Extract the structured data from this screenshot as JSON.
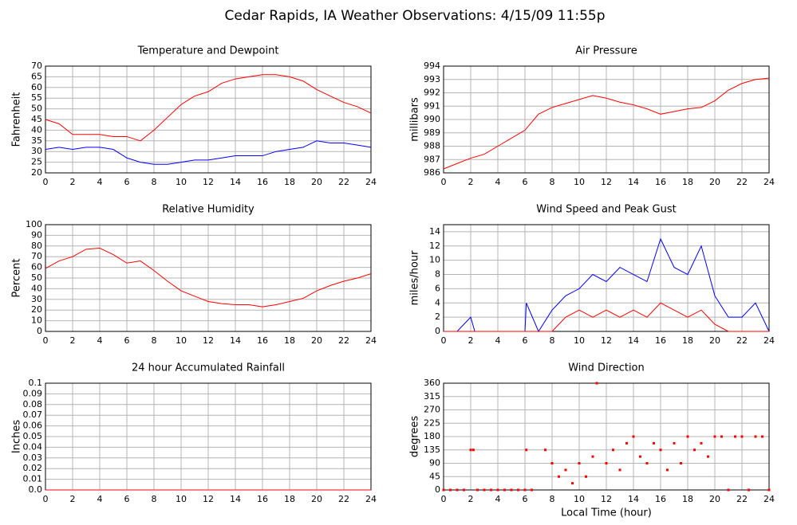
{
  "title": "Cedar Rapids, IA Weather Observations: 4/15/09 11:55p",
  "chart_data": [
    {
      "type": "line",
      "title": "Temperature and Dewpoint",
      "ylabel": "Fahrenheit",
      "x": [
        0,
        1,
        2,
        3,
        4,
        5,
        6,
        7,
        8,
        9,
        10,
        11,
        12,
        13,
        14,
        15,
        16,
        17,
        18,
        19,
        20,
        21,
        22,
        23,
        24
      ],
      "series": [
        {
          "color": "#ff0000",
          "values": [
            45,
            43,
            38,
            38,
            38,
            37,
            37,
            35,
            40,
            46,
            52,
            56,
            58,
            62,
            64,
            65,
            66,
            66,
            65,
            63,
            59,
            56,
            53,
            51,
            48
          ]
        },
        {
          "color": "#0000ff",
          "values": [
            31,
            32,
            31,
            32,
            32,
            31,
            27,
            25,
            24,
            24,
            25,
            26,
            26,
            27,
            28,
            28,
            28,
            30,
            31,
            32,
            35,
            34,
            34,
            33,
            32
          ]
        }
      ],
      "xlim": [
        0,
        24
      ],
      "xticks": [
        0,
        2,
        4,
        6,
        8,
        10,
        12,
        14,
        16,
        18,
        20,
        22,
        24
      ],
      "ylim": [
        20,
        70
      ],
      "yticks": [
        20,
        25,
        30,
        35,
        40,
        45,
        50,
        55,
        60,
        65,
        70
      ],
      "grid": true
    },
    {
      "type": "line",
      "title": "Air Pressure",
      "ylabel": "millibars",
      "x": [
        0,
        1,
        2,
        3,
        4,
        5,
        6,
        7,
        8,
        9,
        10,
        11,
        12,
        13,
        14,
        15,
        16,
        17,
        18,
        19,
        20,
        21,
        22,
        23,
        24
      ],
      "series": [
        {
          "color": "#ff0000",
          "values": [
            986.3,
            986.7,
            987.1,
            987.4,
            988,
            988.6,
            989.2,
            990.4,
            990.9,
            991.2,
            991.5,
            991.8,
            991.6,
            991.3,
            991.1,
            990.8,
            990.4,
            990.6,
            990.8,
            990.9,
            991.4,
            992.2,
            992.7,
            993,
            993.1
          ]
        }
      ],
      "xlim": [
        0,
        24
      ],
      "xticks": [
        0,
        2,
        4,
        6,
        8,
        10,
        12,
        14,
        16,
        18,
        20,
        22,
        24
      ],
      "ylim": [
        986,
        994
      ],
      "yticks": [
        986,
        987,
        988,
        989,
        990,
        991,
        992,
        993,
        994
      ],
      "grid": true
    },
    {
      "type": "line",
      "title": "Relative Humidity",
      "ylabel": "Percent",
      "x": [
        0,
        1,
        2,
        3,
        4,
        5,
        6,
        7,
        8,
        9,
        10,
        11,
        12,
        13,
        14,
        15,
        16,
        17,
        18,
        19,
        20,
        21,
        22,
        23,
        24
      ],
      "series": [
        {
          "color": "#ff0000",
          "values": [
            59,
            66,
            70,
            77,
            78,
            72,
            64,
            66,
            57,
            47,
            38,
            33,
            28,
            26,
            25,
            25,
            23,
            25,
            28,
            31,
            38,
            43,
            47,
            50,
            54
          ]
        }
      ],
      "xlim": [
        0,
        24
      ],
      "xticks": [
        0,
        2,
        4,
        6,
        8,
        10,
        12,
        14,
        16,
        18,
        20,
        22,
        24
      ],
      "ylim": [
        0,
        100
      ],
      "yticks": [
        0,
        10,
        20,
        30,
        40,
        50,
        60,
        70,
        80,
        90,
        100
      ],
      "grid": true
    },
    {
      "type": "line",
      "title": "Wind Speed and Peak Gust",
      "ylabel": "miles/hour",
      "x": [
        0,
        1,
        2,
        2.3,
        3,
        4,
        5,
        6,
        6.1,
        7,
        8,
        9,
        10,
        11,
        12,
        13,
        14,
        15,
        16,
        17,
        18,
        19,
        20,
        21,
        22,
        23,
        24
      ],
      "series": [
        {
          "color": "#0000ff",
          "values": [
            0,
            0,
            2,
            0,
            0,
            0,
            0,
            0,
            4,
            0,
            3,
            5,
            6,
            8,
            7,
            9,
            8,
            7,
            13,
            9,
            8,
            12,
            5,
            2,
            2,
            4,
            0
          ]
        },
        {
          "color": "#ff0000",
          "values": [
            0,
            0,
            0,
            0,
            0,
            0,
            0,
            0,
            0,
            0,
            0,
            2,
            3,
            2,
            3,
            2,
            3,
            2,
            4,
            3,
            2,
            3,
            1,
            0,
            0,
            0,
            0
          ]
        }
      ],
      "xlim": [
        0,
        24
      ],
      "xticks": [
        0,
        2,
        4,
        6,
        8,
        10,
        12,
        14,
        16,
        18,
        20,
        22,
        24
      ],
      "ylim": [
        0,
        15
      ],
      "yticks": [
        0,
        2,
        4,
        6,
        8,
        10,
        12,
        14
      ],
      "grid": true
    },
    {
      "type": "line",
      "title": "24 hour Accumulated Rainfall",
      "ylabel": "Inches",
      "x": [
        0,
        24
      ],
      "series": [
        {
          "color": "#ff0000",
          "values": [
            0,
            0
          ]
        }
      ],
      "xlim": [
        0,
        24
      ],
      "xticks": [
        0,
        2,
        4,
        6,
        8,
        10,
        12,
        14,
        16,
        18,
        20,
        22,
        24
      ],
      "ylim": [
        0,
        0.1
      ],
      "yticks": [
        {
          "value": 0,
          "label": "0.0"
        },
        0.01,
        0.02,
        0.03,
        0.04,
        0.05,
        0.06,
        0.07,
        0.08,
        0.09,
        0.1
      ],
      "grid": true
    },
    {
      "type": "scatter",
      "title": "Wind Direction",
      "ylabel": "degrees",
      "xlabel": "Local Time (hour)",
      "x": [
        0,
        0.5,
        1,
        1.5,
        2,
        2.2,
        2.5,
        3,
        3.5,
        4,
        4.5,
        5,
        5.5,
        6,
        6.1,
        6.5,
        7.5,
        8,
        8.5,
        9,
        9.5,
        10,
        10.5,
        11,
        11.3,
        12,
        12.5,
        13,
        13.5,
        14,
        14.5,
        15,
        15.5,
        16,
        16.5,
        17,
        17.5,
        18,
        18.5,
        19,
        19.5,
        20,
        20.5,
        21,
        21.5,
        22,
        22.5,
        23,
        23.5,
        24
      ],
      "series": [
        {
          "color": "#ff0000",
          "values": [
            0,
            0,
            0,
            0,
            135,
            135,
            0,
            0,
            0,
            0,
            0,
            0,
            0,
            0,
            135,
            0,
            135,
            90,
            45,
            67.5,
            22.5,
            90,
            45,
            112.5,
            360,
            90,
            135,
            67.5,
            157.5,
            180,
            112.5,
            90,
            157.5,
            135,
            67.5,
            157.5,
            90,
            180,
            135,
            157.5,
            112.5,
            180,
            180,
            0,
            180,
            180,
            0,
            180,
            180,
            0
          ]
        }
      ],
      "xlim": [
        0,
        24
      ],
      "xticks": [
        0,
        2,
        4,
        6,
        8,
        10,
        12,
        14,
        16,
        18,
        20,
        22,
        24
      ],
      "ylim": [
        0,
        360
      ],
      "yticks": [
        0,
        45,
        90,
        135,
        180,
        225,
        270,
        315,
        360
      ],
      "grid": true
    }
  ]
}
